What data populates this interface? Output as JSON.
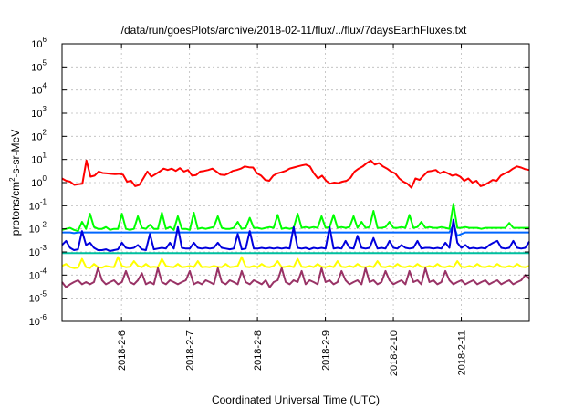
{
  "chart_data": {
    "type": "line",
    "title": "/data/run/goesPlots/archive/2018-02-11/flux/../flux/7daysEarthFluxes.txt",
    "xlabel": "Coordinated Universal Time (UTC)",
    "ylabel": {
      "base": "protons/cm",
      "sup": "2",
      "rest": "-s-sr-MeV"
    },
    "yscale": "log",
    "ylim": [
      1e-06,
      1000000.0
    ],
    "yticks": [
      {
        "value": 1e-06,
        "base": "10",
        "exp": "-6"
      },
      {
        "value": 1e-05,
        "base": "10",
        "exp": "-5"
      },
      {
        "value": 0.0001,
        "base": "10",
        "exp": "-4"
      },
      {
        "value": 0.001,
        "base": "10",
        "exp": "-3"
      },
      {
        "value": 0.01,
        "base": "10",
        "exp": "-2"
      },
      {
        "value": 0.1,
        "base": "10",
        "exp": "-1"
      },
      {
        "value": 1,
        "base": "10",
        "exp": "0"
      },
      {
        "value": 10,
        "base": "10",
        "exp": "1"
      },
      {
        "value": 100,
        "base": "10",
        "exp": "2"
      },
      {
        "value": 1000,
        "base": "10",
        "exp": "3"
      },
      {
        "value": 10000,
        "base": "10",
        "exp": "4"
      },
      {
        "value": 100000,
        "base": "10",
        "exp": "5"
      },
      {
        "value": 1000000,
        "base": "10",
        "exp": "6"
      }
    ],
    "xlim": [
      "2018-02-05 03:00",
      "2018-02-12 00:00"
    ],
    "xticks": [
      "2018-2-6",
      "2018-2-7",
      "2018-2-8",
      "2018-2-9",
      "2018-2-10",
      "2018-2-11"
    ],
    "grid": true,
    "series": [
      {
        "color": "#ff0000",
        "values": [
          1.5,
          1.2,
          1.1,
          0.8,
          0.85,
          0.9,
          9,
          1.8,
          2,
          3,
          2.6,
          2.5,
          2.4,
          2.3,
          2.4,
          2.2,
          1.1,
          1.2,
          0.7,
          0.8,
          1.5,
          3,
          1.8,
          2.3,
          3,
          4,
          3.5,
          4,
          3.2,
          4.2,
          3,
          3.5,
          2,
          2.1,
          3,
          3.2,
          3.5,
          4,
          3,
          2.2,
          2.1,
          2.5,
          3.2,
          3.5,
          4,
          5,
          4.6,
          4.5,
          2.5,
          2,
          1.3,
          1.2,
          2,
          2.5,
          2.8,
          3.2,
          4,
          4.5,
          5,
          5.5,
          6,
          5,
          2.5,
          1.5,
          2,
          1.2,
          0.9,
          1,
          0.95,
          1.1,
          1.2,
          1.6,
          3,
          4,
          5,
          7,
          9,
          6,
          7,
          5,
          4,
          3,
          2.5,
          1.5,
          1.1,
          0.9,
          0.6,
          1.5,
          1.3,
          2,
          3,
          3.2,
          3.5,
          2.5,
          3,
          2.5,
          2,
          2.2,
          1.8,
          1.2,
          1.5,
          1,
          1.2,
          0.7,
          0.8,
          1,
          1.3,
          1.2,
          2,
          2.5,
          3,
          4,
          5,
          4.5,
          3.8,
          3.5
        ]
      },
      {
        "color": "#00ff00",
        "values": [
          0.009,
          0.01,
          0.011,
          0.009,
          0.008,
          0.02,
          0.01,
          0.045,
          0.012,
          0.01,
          0.01,
          0.012,
          0.009,
          0.01,
          0.01,
          0.045,
          0.01,
          0.009,
          0.01,
          0.035,
          0.011,
          0.01,
          0.015,
          0.01,
          0.01,
          0.05,
          0.01,
          0.012,
          0.009,
          0.035,
          0.01,
          0.01,
          0.009,
          0.05,
          0.01,
          0.011,
          0.01,
          0.011,
          0.012,
          0.035,
          0.011,
          0.01,
          0.01,
          0.011,
          0.02,
          0.01,
          0.011,
          0.03,
          0.011,
          0.011,
          0.01,
          0.011,
          0.012,
          0.011,
          0.04,
          0.01,
          0.011,
          0.01,
          0.011,
          0.045,
          0.011,
          0.012,
          0.011,
          0.012,
          0.011,
          0.035,
          0.011,
          0.012,
          0.04,
          0.011,
          0.012,
          0.011,
          0.012,
          0.035,
          0.011,
          0.02,
          0.011,
          0.012,
          0.06,
          0.011,
          0.011,
          0.012,
          0.02,
          0.011,
          0.011,
          0.012,
          0.011,
          0.04,
          0.011,
          0.012,
          0.02,
          0.011,
          0.012,
          0.011,
          0.011,
          0.012,
          0.011,
          0.01,
          0.12,
          0.011,
          0.011,
          0.012,
          0.011,
          0.011,
          0.011,
          0.01,
          0.011,
          0.011,
          0.011,
          0.011,
          0.011,
          0.011,
          0.018,
          0.011,
          0.011,
          0.011,
          0.011,
          0.011
        ]
      },
      {
        "color": "#0066ff",
        "values": [
          0.007,
          0.007,
          0.007,
          0.0065,
          0.007,
          0.007,
          0.007,
          0.007,
          0.007,
          0.007,
          0.007,
          0.007,
          0.007,
          0.007,
          0.007,
          0.007,
          0.007,
          0.007,
          0.007,
          0.007,
          0.007,
          0.007,
          0.007,
          0.007,
          0.007,
          0.007,
          0.007,
          0.007,
          0.007,
          0.007,
          0.007,
          0.007,
          0.007,
          0.007,
          0.007,
          0.007,
          0.007,
          0.007,
          0.007,
          0.007,
          0.007,
          0.007,
          0.007,
          0.007,
          0.007,
          0.007,
          0.007,
          0.007,
          0.007,
          0.007,
          0.007,
          0.007,
          0.007,
          0.007,
          0.007,
          0.007,
          0.007,
          0.007,
          0.007,
          0.007,
          0.007,
          0.007,
          0.007,
          0.007,
          0.007,
          0.007,
          0.007,
          0.007,
          0.007,
          0.007,
          0.007,
          0.007,
          0.007,
          0.007,
          0.007,
          0.007,
          0.007,
          0.007,
          0.007,
          0.007,
          0.007,
          0.007,
          0.007,
          0.007,
          0.007,
          0.007,
          0.007,
          0.007,
          0.007,
          0.007,
          0.007,
          0.007,
          0.007,
          0.007,
          0.007,
          0.007,
          0.007,
          0.007,
          0.015,
          0.005,
          0.006,
          0.007,
          0.007,
          0.007,
          0.007,
          0.007,
          0.007,
          0.007,
          0.007,
          0.007,
          0.007,
          0.007,
          0.007,
          0.007,
          0.007,
          0.007,
          0.007,
          0.007
        ]
      },
      {
        "color": "#0000dd",
        "values": [
          0.002,
          0.003,
          0.0015,
          0.0012,
          0.0013,
          0.008,
          0.002,
          0.0025,
          0.0015,
          0.0012,
          0.0012,
          0.0013,
          0.0011,
          0.0012,
          0.0013,
          0.0025,
          0.0015,
          0.0014,
          0.0015,
          0.002,
          0.0013,
          0.0012,
          0.006,
          0.0013,
          0.0014,
          0.0015,
          0.0014,
          0.0025,
          0.0014,
          0.012,
          0.0015,
          0.0014,
          0.0014,
          0.0025,
          0.0015,
          0.0014,
          0.0015,
          0.0014,
          0.0015,
          0.0025,
          0.0015,
          0.0014,
          0.0013,
          0.0014,
          0.006,
          0.0013,
          0.0014,
          0.008,
          0.0014,
          0.0014,
          0.0015,
          0.0014,
          0.0015,
          0.0014,
          0.0015,
          0.0014,
          0.0015,
          0.0014,
          0.012,
          0.0015,
          0.0014,
          0.0015,
          0.0013,
          0.0015,
          0.0014,
          0.0015,
          0.0014,
          0.012,
          0.0014,
          0.0015,
          0.0014,
          0.003,
          0.0015,
          0.0014,
          0.005,
          0.0015,
          0.0014,
          0.0015,
          0.004,
          0.0014,
          0.0015,
          0.0014,
          0.003,
          0.0015,
          0.0014,
          0.002,
          0.0015,
          0.0014,
          0.0015,
          0.003,
          0.0014,
          0.0015,
          0.0015,
          0.0014,
          0.0015,
          0.0014,
          0.0025,
          0.0015,
          0.025,
          0.0025,
          0.0015,
          0.002,
          0.0014,
          0.0015,
          0.0014,
          0.0015,
          0.0014,
          0.002,
          0.0025,
          0.003,
          0.0015,
          0.0014,
          0.0015,
          0.003,
          0.0015,
          0.0014,
          0.0015,
          0.0028
        ]
      },
      {
        "color": "#00c0a0",
        "values": [
          0.0009,
          0.0009,
          0.0009,
          0.0009,
          0.0009,
          0.0009,
          0.0009,
          0.0009,
          0.0009,
          0.0009,
          0.0009,
          0.0009,
          0.0009,
          0.0009,
          0.0009,
          0.0009,
          0.0009,
          0.0009,
          0.0009,
          0.0009,
          0.0009,
          0.0009,
          0.0009,
          0.0009,
          0.0009,
          0.0009,
          0.0009,
          0.0009,
          0.0009,
          0.0009,
          0.0009,
          0.0009,
          0.0009,
          0.0009,
          0.0009,
          0.0009,
          0.0009,
          0.0009,
          0.0009,
          0.0009,
          0.0009,
          0.0009,
          0.0009,
          0.0009,
          0.0009,
          0.0009,
          0.0009,
          0.0009,
          0.0009,
          0.0009,
          0.0009,
          0.0009,
          0.0009,
          0.0009,
          0.0009,
          0.0009,
          0.0009,
          0.0009,
          0.0009,
          0.0009,
          0.0009,
          0.0009,
          0.0009,
          0.0009,
          0.0009,
          0.0009,
          0.0009,
          0.0009,
          0.0009,
          0.0009,
          0.0009,
          0.0009,
          0.0009,
          0.0009,
          0.0009,
          0.0009,
          0.0009,
          0.0009,
          0.0009,
          0.0009,
          0.0009,
          0.0009,
          0.0009,
          0.0009,
          0.0009,
          0.0009,
          0.0009,
          0.0009,
          0.0009,
          0.0009,
          0.0009,
          0.0009,
          0.0009,
          0.0009,
          0.0009,
          0.0009,
          0.0009,
          0.0009,
          0.0009,
          0.0009,
          0.0009,
          0.0009,
          0.0009,
          0.0009,
          0.0009,
          0.0009,
          0.0009,
          0.0009,
          0.0009,
          0.0009,
          0.0009,
          0.0009,
          0.0009,
          0.0009,
          0.0009,
          0.0009,
          0.0009,
          0.0009
        ]
      },
      {
        "color": "#ffff00",
        "values": [
          0.00025,
          0.0003,
          0.00022,
          0.0002,
          0.00021,
          0.0005,
          0.00022,
          0.0002,
          0.0003,
          0.00022,
          0.00021,
          0.00025,
          0.00023,
          0.00022,
          0.0006,
          0.00025,
          0.00022,
          0.00023,
          0.0004,
          0.00025,
          0.00022,
          0.0003,
          0.00022,
          0.00023,
          0.00022,
          0.0005,
          0.00025,
          0.00023,
          0.00022,
          0.0003,
          0.00022,
          0.00023,
          0.00025,
          0.00022,
          0.0004,
          0.00022,
          0.00023,
          0.00022,
          0.00025,
          0.00023,
          0.00022,
          0.0003,
          0.00022,
          0.00023,
          0.00025,
          0.0006,
          0.00023,
          0.00022,
          0.00025,
          0.00022,
          0.0003,
          0.00023,
          0.00022,
          0.00025,
          0.0004,
          0.00022,
          0.00023,
          0.00025,
          0.00022,
          0.0005,
          0.00023,
          0.00022,
          0.00025,
          0.00022,
          0.0003,
          0.00023,
          0.00022,
          0.00025,
          0.00022,
          0.0004,
          0.00023,
          0.00022,
          0.00025,
          0.00022,
          0.0003,
          0.00023,
          0.00022,
          0.00025,
          0.00022,
          0.0004,
          0.00023,
          0.00022,
          0.00025,
          0.00022,
          0.0003,
          0.00023,
          0.00022,
          0.00025,
          0.00022,
          0.0003,
          0.00023,
          0.00022,
          0.00025,
          0.00022,
          0.0003,
          0.00023,
          0.00022,
          0.00025,
          0.00022,
          0.0004,
          0.00023,
          0.00022,
          0.00025,
          0.00022,
          0.0003,
          0.00023,
          0.00022,
          0.00025,
          0.00022,
          0.0003,
          0.00023,
          0.00022,
          0.00025,
          0.00022,
          0.0003,
          0.00023,
          0.00022,
          0.00025
        ]
      },
      {
        "color": "#993366",
        "values": [
          5e-05,
          3e-05,
          4e-05,
          5e-05,
          6e-05,
          4e-05,
          5e-05,
          4e-05,
          5e-05,
          0.0002,
          6e-05,
          4e-05,
          5e-05,
          6e-05,
          4e-05,
          5e-05,
          0.00015,
          5e-05,
          4e-05,
          6e-05,
          0.00012,
          4e-05,
          5e-05,
          4e-05,
          0.0002,
          5e-05,
          4e-05,
          6e-05,
          5e-05,
          4e-05,
          5e-05,
          6e-05,
          0.00015,
          4e-05,
          5e-05,
          4e-05,
          6e-05,
          5e-05,
          4e-05,
          0.0002,
          5e-05,
          4e-05,
          6e-05,
          5e-05,
          4e-05,
          0.00015,
          5e-05,
          4e-05,
          6e-05,
          5e-05,
          4e-05,
          6e-05,
          3e-05,
          5e-05,
          6e-05,
          0.0002,
          5e-05,
          4e-05,
          6e-05,
          5e-05,
          0.00015,
          4e-05,
          6e-05,
          5e-05,
          4e-05,
          0.0002,
          5e-05,
          6e-05,
          4e-05,
          5e-05,
          0.00015,
          6e-05,
          4e-05,
          5e-05,
          6e-05,
          4e-05,
          0.0002,
          5e-05,
          6e-05,
          4e-05,
          5e-05,
          0.00015,
          6e-05,
          4e-05,
          5e-05,
          6e-05,
          4e-05,
          0.00015,
          5e-05,
          6e-05,
          4e-05,
          0.0002,
          5e-05,
          6e-05,
          4e-05,
          5e-05,
          0.00015,
          6e-05,
          4e-05,
          5e-05,
          6e-05,
          4e-05,
          5e-05,
          6e-05,
          4e-05,
          5e-05,
          6e-05,
          4e-05,
          5e-05,
          6e-05,
          4e-05,
          5e-05,
          6e-05,
          4e-05,
          5e-05,
          6e-05,
          0.0001,
          7e-05
        ]
      }
    ]
  }
}
